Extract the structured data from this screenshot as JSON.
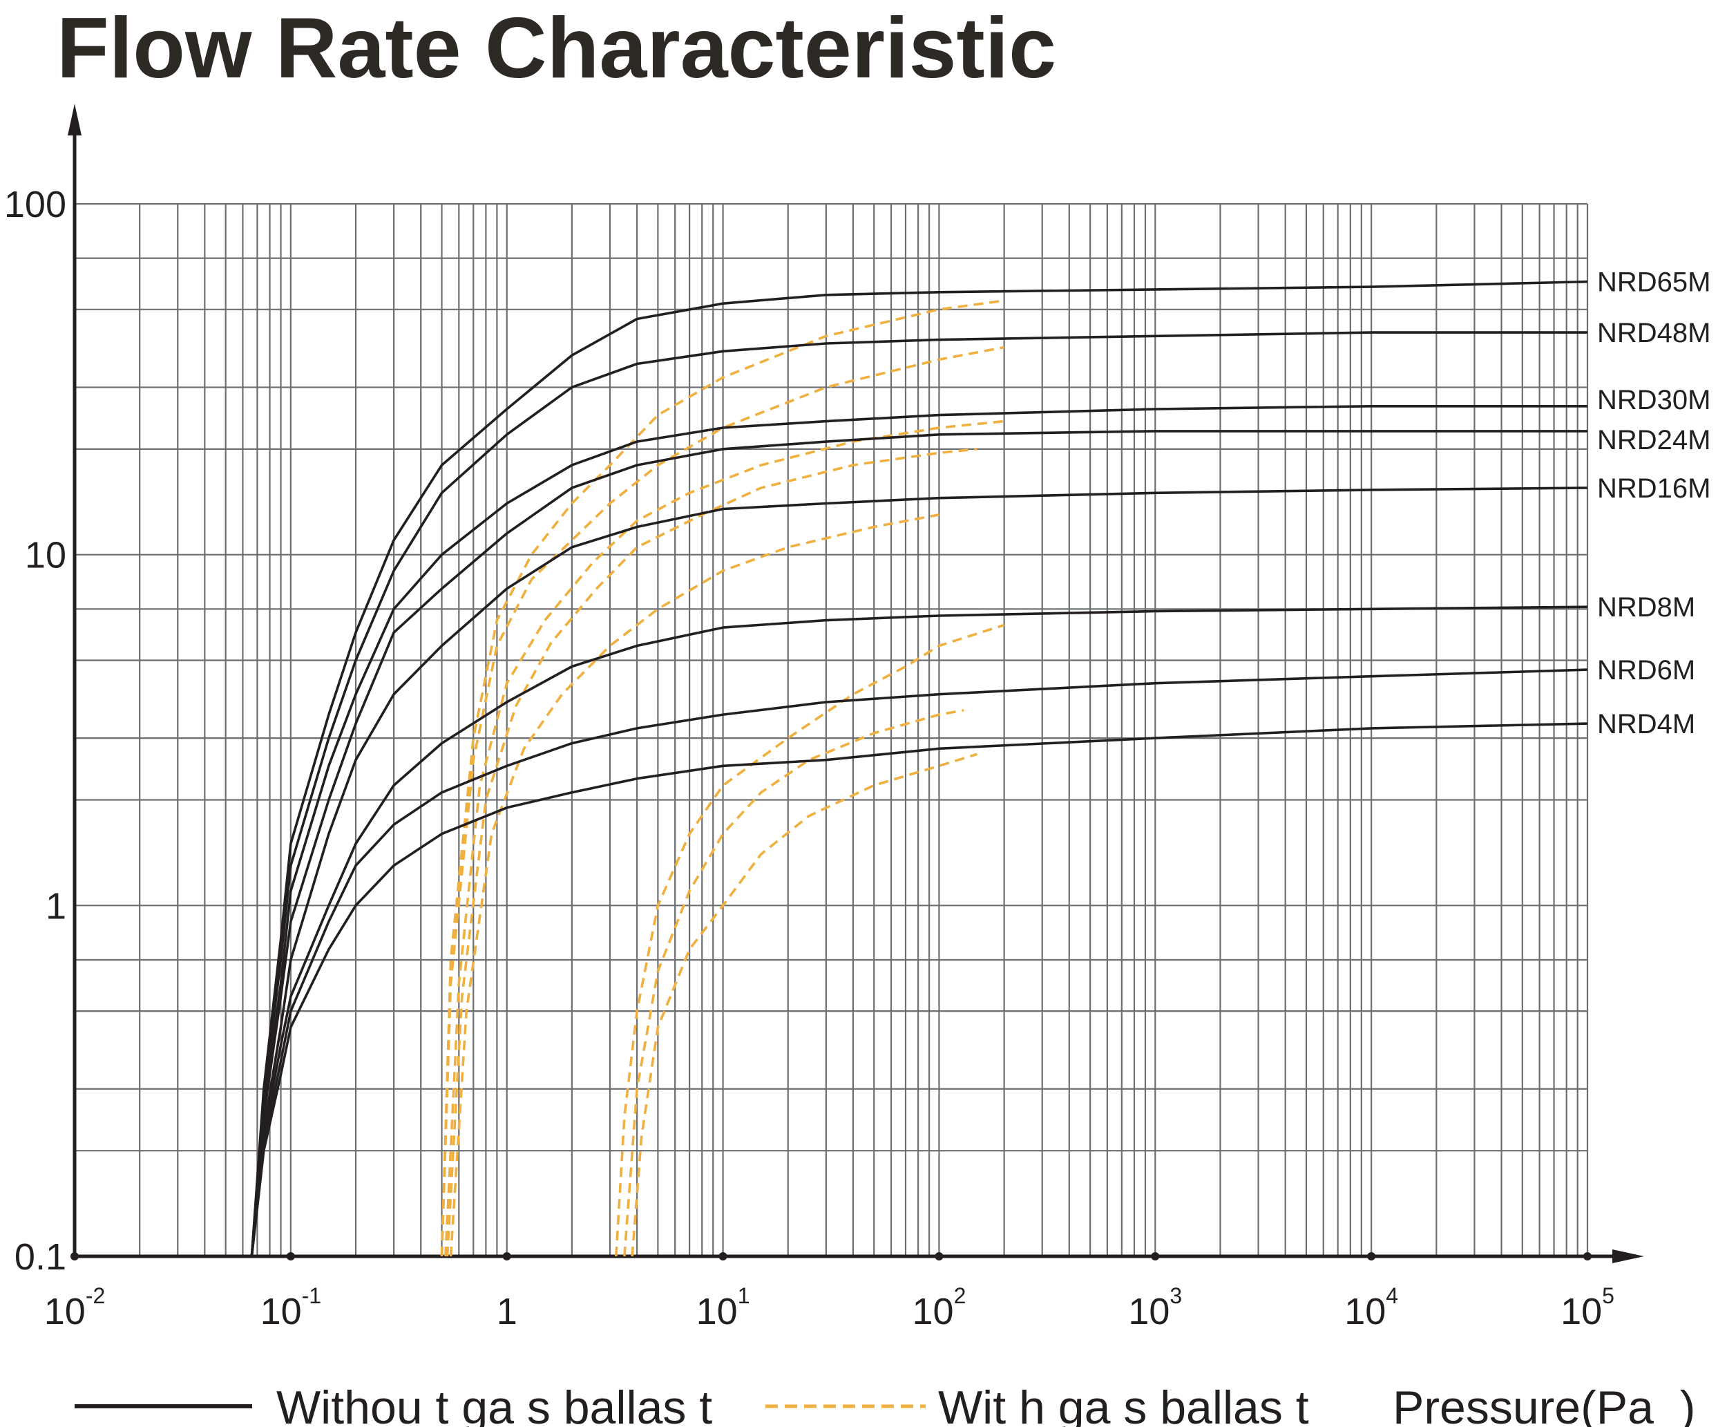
{
  "title": "Flow Rate Characteristic",
  "chart_data": {
    "type": "line",
    "title": "Flow Rate Characteristic",
    "xlabel": "Pressure(Pa  )",
    "ylabel": "",
    "x_scale": "log",
    "y_scale": "log",
    "xlim": [
      0.01,
      100000
    ],
    "ylim": [
      0.1,
      100
    ],
    "grid": true,
    "x_ticks": [
      {
        "base": "10",
        "exp": "-2"
      },
      {
        "base": "10",
        "exp": "-1"
      },
      {
        "base": "1",
        "exp": ""
      },
      {
        "base": "10",
        "exp": "1"
      },
      {
        "base": "10",
        "exp": "2"
      },
      {
        "base": "10",
        "exp": "3"
      },
      {
        "base": "10",
        "exp": "4"
      },
      {
        "base": "10",
        "exp": "5"
      }
    ],
    "y_ticks": [
      "0.1",
      "1",
      "10",
      "100"
    ],
    "legend": {
      "placement": "bottom",
      "items": [
        {
          "label": "Withou t ga s ballas t",
          "style": "solid",
          "color": "#231f20"
        },
        {
          "label": "Wit h ga s ballas t",
          "style": "dashed",
          "color": "#f0b03f"
        }
      ]
    },
    "colors": {
      "without_gas_ballast": "#231f20",
      "with_gas_ballast": "#f0b03f"
    },
    "series": [
      {
        "name": "NRD65M",
        "style": "solid",
        "points": [
          [
            0.066,
            0.1
          ],
          [
            0.075,
            0.3
          ],
          [
            0.09,
            0.8
          ],
          [
            0.1,
            1.5
          ],
          [
            0.15,
            3.5
          ],
          [
            0.2,
            6
          ],
          [
            0.3,
            11
          ],
          [
            0.5,
            18
          ],
          [
            1,
            26
          ],
          [
            2,
            37
          ],
          [
            4,
            47
          ],
          [
            10,
            52
          ],
          [
            30,
            55
          ],
          [
            100,
            56
          ],
          [
            1000,
            57
          ],
          [
            10000,
            58
          ],
          [
            100000,
            60
          ]
        ]
      },
      {
        "name": "NRD48M",
        "style": "solid",
        "points": [
          [
            0.066,
            0.1
          ],
          [
            0.075,
            0.28
          ],
          [
            0.09,
            0.7
          ],
          [
            0.1,
            1.3
          ],
          [
            0.15,
            3
          ],
          [
            0.2,
            5
          ],
          [
            0.3,
            9
          ],
          [
            0.5,
            15
          ],
          [
            1,
            22
          ],
          [
            2,
            30
          ],
          [
            4,
            35
          ],
          [
            10,
            38
          ],
          [
            30,
            40
          ],
          [
            100,
            41
          ],
          [
            1000,
            42
          ],
          [
            10000,
            43
          ],
          [
            100000,
            43
          ]
        ]
      },
      {
        "name": "NRD30M",
        "style": "solid",
        "points": [
          [
            0.066,
            0.1
          ],
          [
            0.075,
            0.26
          ],
          [
            0.09,
            0.6
          ],
          [
            0.1,
            1.1
          ],
          [
            0.15,
            2.5
          ],
          [
            0.2,
            4
          ],
          [
            0.3,
            7
          ],
          [
            0.5,
            10
          ],
          [
            1,
            14
          ],
          [
            2,
            18
          ],
          [
            4,
            21
          ],
          [
            10,
            23
          ],
          [
            30,
            24
          ],
          [
            100,
            25
          ],
          [
            1000,
            26
          ],
          [
            10000,
            26.5
          ],
          [
            100000,
            26.5
          ]
        ]
      },
      {
        "name": "NRD24M",
        "style": "solid",
        "points": [
          [
            0.066,
            0.1
          ],
          [
            0.075,
            0.25
          ],
          [
            0.09,
            0.55
          ],
          [
            0.1,
            0.9
          ],
          [
            0.15,
            2
          ],
          [
            0.2,
            3.3
          ],
          [
            0.3,
            6
          ],
          [
            0.5,
            8
          ],
          [
            1,
            11.5
          ],
          [
            2,
            15.5
          ],
          [
            4,
            18
          ],
          [
            10,
            20
          ],
          [
            30,
            21
          ],
          [
            100,
            22
          ],
          [
            1000,
            22.5
          ],
          [
            10000,
            22.5
          ],
          [
            100000,
            22.5
          ]
        ]
      },
      {
        "name": "NRD16M",
        "style": "solid",
        "points": [
          [
            0.066,
            0.1
          ],
          [
            0.075,
            0.23
          ],
          [
            0.09,
            0.45
          ],
          [
            0.1,
            0.7
          ],
          [
            0.15,
            1.6
          ],
          [
            0.2,
            2.6
          ],
          [
            0.3,
            4
          ],
          [
            0.5,
            5.5
          ],
          [
            1,
            8
          ],
          [
            2,
            10.5
          ],
          [
            4,
            12
          ],
          [
            10,
            13.5
          ],
          [
            30,
            14
          ],
          [
            100,
            14.5
          ],
          [
            1000,
            15
          ],
          [
            10000,
            15.3
          ],
          [
            100000,
            15.5
          ]
        ]
      },
      {
        "name": "NRD8M",
        "style": "solid",
        "points": [
          [
            0.066,
            0.1
          ],
          [
            0.075,
            0.22
          ],
          [
            0.09,
            0.4
          ],
          [
            0.1,
            0.55
          ],
          [
            0.15,
            1
          ],
          [
            0.2,
            1.5
          ],
          [
            0.3,
            2.2
          ],
          [
            0.5,
            2.9
          ],
          [
            1,
            3.8
          ],
          [
            2,
            4.8
          ],
          [
            4,
            5.5
          ],
          [
            10,
            6.2
          ],
          [
            30,
            6.5
          ],
          [
            100,
            6.7
          ],
          [
            1000,
            6.9
          ],
          [
            10000,
            7
          ],
          [
            100000,
            7.1
          ]
        ]
      },
      {
        "name": "NRD6M",
        "style": "solid",
        "points": [
          [
            0.066,
            0.1
          ],
          [
            0.075,
            0.21
          ],
          [
            0.09,
            0.36
          ],
          [
            0.1,
            0.5
          ],
          [
            0.15,
            0.9
          ],
          [
            0.2,
            1.3
          ],
          [
            0.3,
            1.7
          ],
          [
            0.5,
            2.1
          ],
          [
            1,
            2.5
          ],
          [
            2,
            2.9
          ],
          [
            4,
            3.2
          ],
          [
            10,
            3.5
          ],
          [
            30,
            3.8
          ],
          [
            100,
            4
          ],
          [
            1000,
            4.3
          ],
          [
            10000,
            4.5
          ],
          [
            100000,
            4.7
          ]
        ]
      },
      {
        "name": "NRD4M",
        "style": "solid",
        "points": [
          [
            0.066,
            0.1
          ],
          [
            0.075,
            0.2
          ],
          [
            0.09,
            0.33
          ],
          [
            0.1,
            0.45
          ],
          [
            0.15,
            0.75
          ],
          [
            0.2,
            1
          ],
          [
            0.3,
            1.3
          ],
          [
            0.5,
            1.6
          ],
          [
            1,
            1.9
          ],
          [
            2,
            2.1
          ],
          [
            4,
            2.3
          ],
          [
            10,
            2.5
          ],
          [
            30,
            2.6
          ],
          [
            100,
            2.8
          ],
          [
            1000,
            3
          ],
          [
            10000,
            3.2
          ],
          [
            100000,
            3.3
          ]
        ]
      }
    ],
    "gas_ballast_series": [
      {
        "points": [
          [
            0.5,
            0.1
          ],
          [
            0.55,
            0.7
          ],
          [
            0.7,
            3
          ],
          [
            0.9,
            6.5
          ],
          [
            1.3,
            10
          ],
          [
            2,
            14
          ],
          [
            3,
            18
          ],
          [
            5,
            25
          ],
          [
            10,
            32
          ],
          [
            30,
            42
          ],
          [
            100,
            50
          ],
          [
            200,
            53
          ]
        ]
      },
      {
        "points": [
          [
            0.5,
            0.1
          ],
          [
            0.55,
            0.6
          ],
          [
            0.7,
            2.6
          ],
          [
            0.9,
            5.5
          ],
          [
            1.3,
            8.5
          ],
          [
            2,
            11
          ],
          [
            3,
            14
          ],
          [
            5,
            18
          ],
          [
            10,
            23
          ],
          [
            30,
            30
          ],
          [
            100,
            36
          ],
          [
            200,
            39
          ]
        ]
      },
      {
        "points": [
          [
            0.52,
            0.1
          ],
          [
            0.6,
            0.6
          ],
          [
            0.75,
            2.2
          ],
          [
            1,
            4.3
          ],
          [
            1.5,
            6.5
          ],
          [
            2.5,
            9.5
          ],
          [
            4,
            12.5
          ],
          [
            7,
            15
          ],
          [
            15,
            18
          ],
          [
            40,
            21
          ],
          [
            100,
            23
          ],
          [
            200,
            24
          ]
        ]
      },
      {
        "points": [
          [
            0.53,
            0.1
          ],
          [
            0.62,
            0.55
          ],
          [
            0.8,
            2
          ],
          [
            1.1,
            3.7
          ],
          [
            1.6,
            5.6
          ],
          [
            2.6,
            8
          ],
          [
            4,
            10.5
          ],
          [
            8,
            13
          ],
          [
            15,
            15.5
          ],
          [
            40,
            18
          ],
          [
            100,
            19.5
          ],
          [
            150,
            20
          ]
        ]
      },
      {
        "points": [
          [
            0.55,
            0.1
          ],
          [
            0.65,
            0.5
          ],
          [
            0.85,
            1.6
          ],
          [
            1.2,
            2.8
          ],
          [
            1.8,
            4
          ],
          [
            3,
            5.5
          ],
          [
            5,
            7
          ],
          [
            10,
            9
          ],
          [
            20,
            10.5
          ],
          [
            50,
            12
          ],
          [
            100,
            13
          ]
        ]
      },
      {
        "points": [
          [
            3.2,
            0.1
          ],
          [
            3.5,
            0.25
          ],
          [
            4,
            0.5
          ],
          [
            5,
            1
          ],
          [
            7,
            1.6
          ],
          [
            10,
            2.2
          ],
          [
            20,
            3
          ],
          [
            40,
            4
          ],
          [
            70,
            4.8
          ],
          [
            100,
            5.5
          ],
          [
            200,
            6.3
          ]
        ]
      },
      {
        "points": [
          [
            3.5,
            0.1
          ],
          [
            4,
            0.3
          ],
          [
            5,
            0.65
          ],
          [
            7,
            1.1
          ],
          [
            10,
            1.6
          ],
          [
            15,
            2.1
          ],
          [
            25,
            2.6
          ],
          [
            50,
            3.1
          ],
          [
            100,
            3.5
          ],
          [
            130,
            3.6
          ]
        ]
      },
      {
        "points": [
          [
            3.8,
            0.1
          ],
          [
            4.2,
            0.22
          ],
          [
            5,
            0.45
          ],
          [
            7,
            0.75
          ],
          [
            10,
            1
          ],
          [
            15,
            1.4
          ],
          [
            25,
            1.8
          ],
          [
            50,
            2.2
          ],
          [
            100,
            2.5
          ],
          [
            150,
            2.7
          ]
        ]
      }
    ]
  }
}
